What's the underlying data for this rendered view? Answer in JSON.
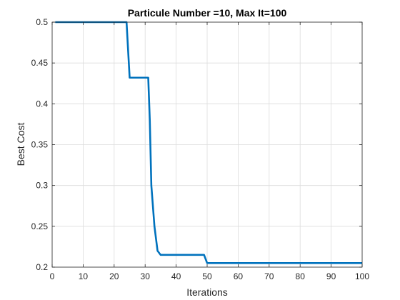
{
  "chart_data": {
    "type": "line",
    "title": "Particule Number =10, Max It=100",
    "xlabel": "Iterations",
    "ylabel": "Best Cost",
    "xlim": [
      0,
      100
    ],
    "ylim": [
      0.2,
      0.5
    ],
    "grid": true,
    "xticks": [
      "0",
      "10",
      "20",
      "30",
      "40",
      "50",
      "60",
      "70",
      "80",
      "90",
      "100"
    ],
    "yticks": [
      "0.2",
      "0.25",
      "0.3",
      "0.35",
      "0.4",
      "0.45",
      "0.5"
    ],
    "series": [
      {
        "x": [
          1,
          24,
          25,
          31,
          31.5,
          32,
          33,
          34,
          35,
          49,
          50,
          100
        ],
        "y": [
          0.5,
          0.5,
          0.432,
          0.432,
          0.38,
          0.3,
          0.25,
          0.22,
          0.215,
          0.215,
          0.205,
          0.205
        ],
        "color": "#0072BD"
      }
    ]
  }
}
